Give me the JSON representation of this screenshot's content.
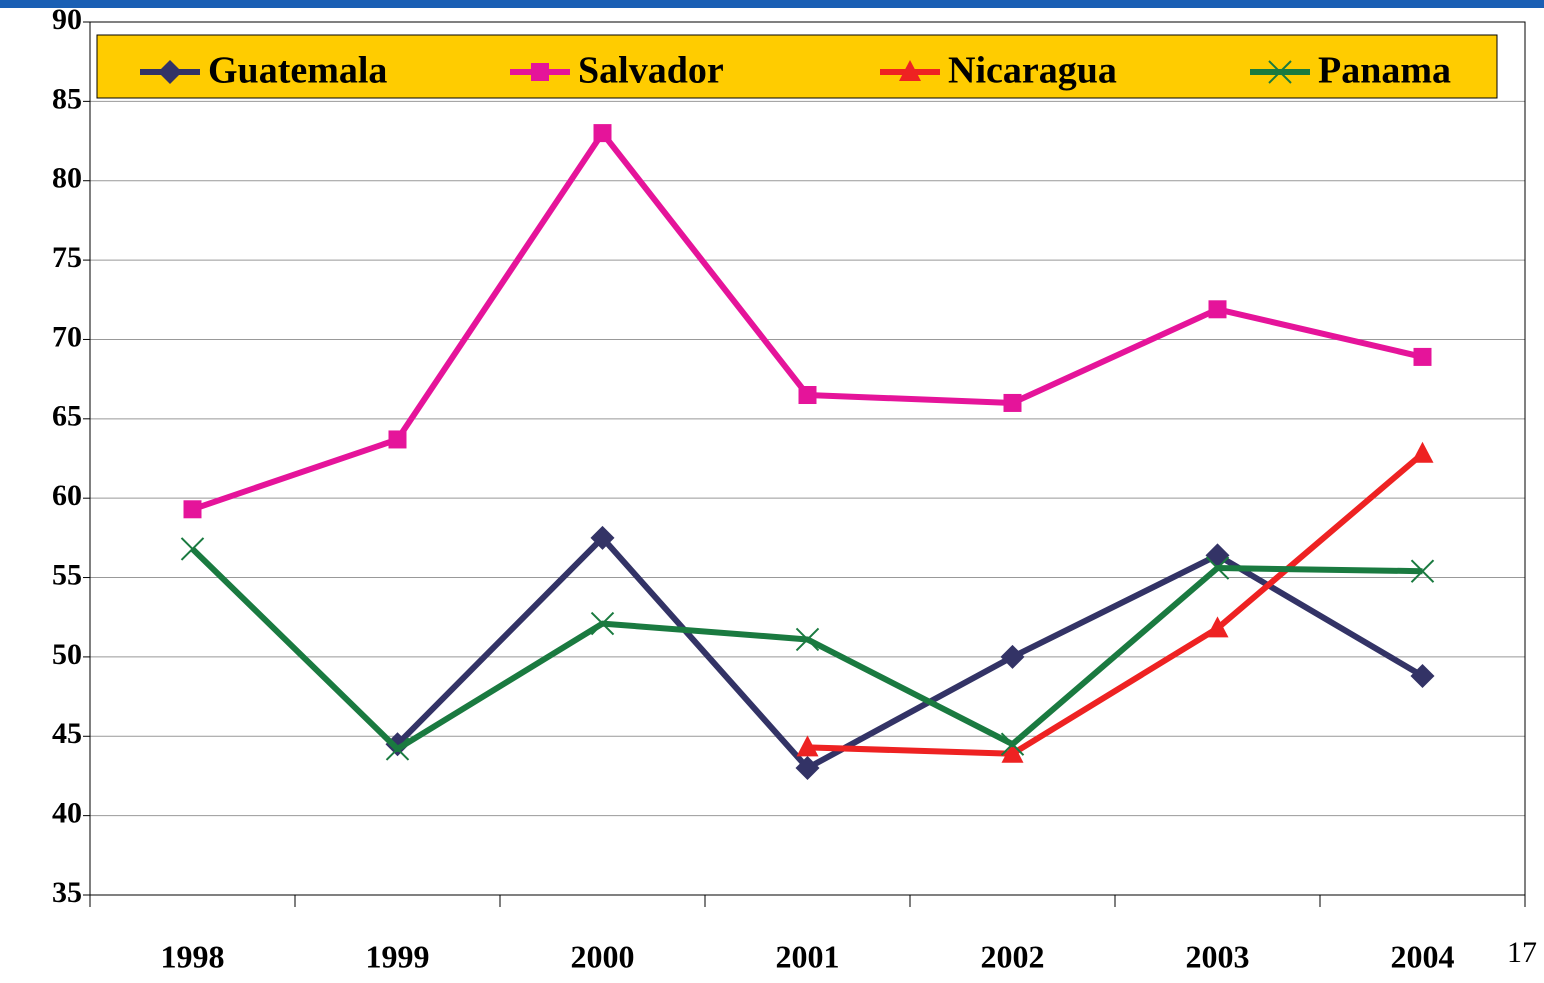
{
  "page_number": "17",
  "chart_data": {
    "type": "line",
    "categories": [
      "1998",
      "1999",
      "2000",
      "2001",
      "2002",
      "2003",
      "2004"
    ],
    "series": [
      {
        "name": "Guatemala",
        "color": "#333366",
        "marker": "diamond",
        "values": [
          null,
          44.5,
          57.5,
          43.0,
          50.0,
          56.4,
          48.8
        ]
      },
      {
        "name": "Salvador",
        "color": "#e5149a",
        "marker": "square",
        "values": [
          59.3,
          63.7,
          83.0,
          66.5,
          66.0,
          71.9,
          68.9
        ]
      },
      {
        "name": "Nicaragua",
        "color": "#ee2222",
        "marker": "triangle",
        "values": [
          null,
          null,
          null,
          44.3,
          43.9,
          51.8,
          62.8
        ]
      },
      {
        "name": "Panama",
        "color": "#1a7a40",
        "marker": "x",
        "values": [
          56.8,
          44.2,
          52.1,
          51.1,
          44.5,
          55.6,
          55.4
        ]
      }
    ],
    "ylim": [
      35,
      90
    ],
    "yticks": [
      35,
      40,
      45,
      50,
      55,
      60,
      65,
      70,
      75,
      80,
      85,
      90
    ],
    "grid": true,
    "legend": "top",
    "legend_color": "#ffcc00"
  }
}
